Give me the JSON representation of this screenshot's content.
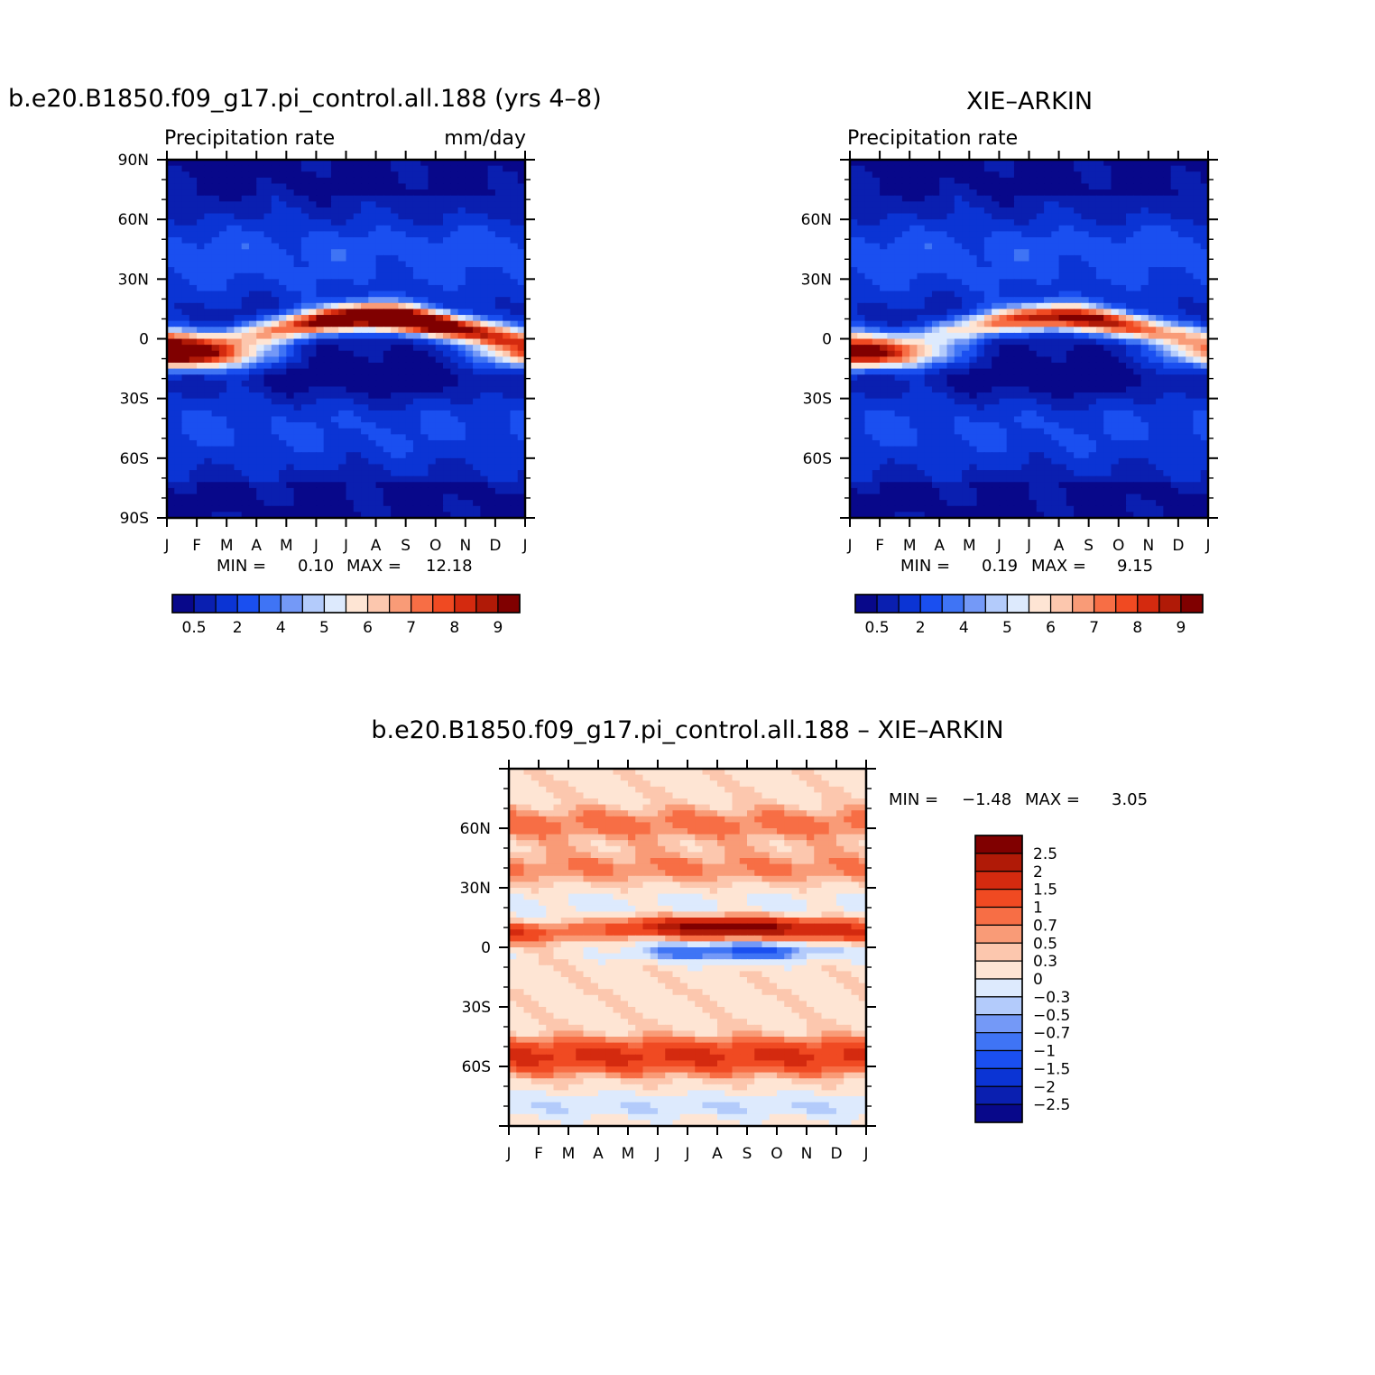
{
  "colors": {
    "precip_palette": [
      "#08088a",
      "#0a1fb0",
      "#0b34d4",
      "#1a4ff0",
      "#3f74f5",
      "#7499f7",
      "#b3cbfb",
      "#ddeafd",
      "#fee5d4",
      "#fcc7ae",
      "#f99b77",
      "#f76e45",
      "#f04a22",
      "#d42a0f",
      "#b01a07",
      "#800000"
    ],
    "diff_palette": [
      "#08088a",
      "#0a1fb0",
      "#0b34d4",
      "#1a4ff0",
      "#3f74f5",
      "#7499f7",
      "#b3cbfb",
      "#ddeafd",
      "#fee5d4",
      "#fcc7ae",
      "#f99b77",
      "#f76e45",
      "#f04a22",
      "#d42a0f",
      "#b01a07",
      "#800000"
    ]
  },
  "charts": {
    "model": {
      "title": "b.e20.B1850.f09_g17.pi_control.all.188 (yrs 4–8)",
      "left_label": "Precipitation rate",
      "right_label": "mm/day",
      "stats": {
        "min_label": "MIN =",
        "min_value": "0.10",
        "max_label": "MAX =",
        "max_value": "12.18"
      }
    },
    "obs": {
      "title": "XIE–ARKIN",
      "left_label": "Precipitation rate",
      "stats": {
        "min_label": "MIN =",
        "min_value": "0.19",
        "max_label": "MAX =",
        "max_value": "9.15"
      }
    },
    "diff": {
      "title": "b.e20.B1850.f09_g17.pi_control.all.188 – XIE–ARKIN",
      "stats": {
        "min_label": "MIN =",
        "min_value": "−1.48",
        "max_label": "MAX =",
        "max_value": "3.05"
      }
    }
  },
  "chart_data": [
    {
      "type": "heatmap",
      "panel": "model",
      "x": [
        "J",
        "F",
        "M",
        "A",
        "M",
        "J",
        "J",
        "A",
        "S",
        "O",
        "N",
        "D",
        "J"
      ],
      "y_ticks": [
        "90N",
        "60N",
        "30N",
        "0",
        "30S",
        "60S",
        "90S"
      ],
      "ylim": [
        -90,
        90
      ],
      "legend_ticks": [
        "0.5",
        "2",
        "4",
        "5",
        "6",
        "7",
        "8",
        "9"
      ],
      "zlim": [
        0.1,
        12.18
      ],
      "itcz_peak_months": [
        "J",
        "A",
        "S"
      ]
    },
    {
      "type": "heatmap",
      "panel": "obs",
      "x": [
        "J",
        "F",
        "M",
        "A",
        "M",
        "J",
        "J",
        "A",
        "S",
        "O",
        "N",
        "D",
        "J"
      ],
      "y_ticks": [
        "60N",
        "30N",
        "0",
        "30S",
        "60S"
      ],
      "ylim": [
        -90,
        90
      ],
      "legend_ticks": [
        "0.5",
        "2",
        "4",
        "5",
        "6",
        "7",
        "8",
        "9"
      ],
      "zlim": [
        0.19,
        9.15
      ],
      "itcz_peak_months": [
        "J",
        "A"
      ]
    },
    {
      "type": "heatmap",
      "panel": "diff",
      "x": [
        "J",
        "F",
        "M",
        "A",
        "M",
        "J",
        "J",
        "A",
        "S",
        "O",
        "N",
        "D",
        "J"
      ],
      "y_ticks": [
        "60N",
        "30N",
        "0",
        "30S",
        "60S"
      ],
      "ylim": [
        -90,
        90
      ],
      "legend_ticks": [
        "2.5",
        "2",
        "1.5",
        "1",
        "0.7",
        "0.5",
        "0.3",
        "0",
        "−0.3",
        "−0.5",
        "−0.7",
        "−1",
        "−1.5",
        "−2",
        "−2.5"
      ],
      "zlim": [
        -1.48,
        3.05
      ]
    }
  ]
}
